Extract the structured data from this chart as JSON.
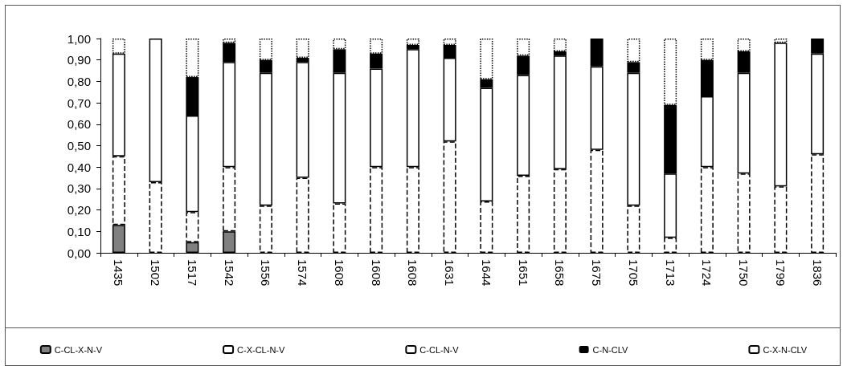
{
  "chart_data": {
    "type": "bar",
    "stacked": true,
    "categories": [
      "1435",
      "1502",
      "1517",
      "1542",
      "1556",
      "1574",
      "1608",
      "1608",
      "1608",
      "1631",
      "1644",
      "1651",
      "1658",
      "1675",
      "1705",
      "1713",
      "1724",
      "1750",
      "1799",
      "1836"
    ],
    "series": [
      {
        "name": "C-CL-X-N-V",
        "color": "#808080",
        "line_style": "solid",
        "values": [
          0.13,
          0,
          0.05,
          0.1,
          0,
          0,
          0,
          0,
          0,
          0,
          0,
          0,
          0,
          0,
          0,
          0,
          0,
          0,
          0,
          0
        ]
      },
      {
        "name": "C-X-CL-N-V",
        "color": "#ffffff",
        "line_style": "dashed",
        "values": [
          0.32,
          0.33,
          0.14,
          0.3,
          0.22,
          0.35,
          0.23,
          0.4,
          0.4,
          0.52,
          0.24,
          0.36,
          0.39,
          0.48,
          0.22,
          0.07,
          0.4,
          0.37,
          0.31,
          0.46
        ]
      },
      {
        "name": "C-CL-N-V",
        "color": "#ffffff",
        "line_style": "solid",
        "values": [
          0.48,
          0.67,
          0.45,
          0.49,
          0.62,
          0.54,
          0.61,
          0.46,
          0.55,
          0.39,
          0.53,
          0.47,
          0.53,
          0.39,
          0.62,
          0.3,
          0.33,
          0.47,
          0.67,
          0.47
        ]
      },
      {
        "name": "C-N-CLV",
        "color": "#000000",
        "line_style": "solid",
        "values": [
          0,
          0,
          0.18,
          0.09,
          0.06,
          0.02,
          0.11,
          0.07,
          0.02,
          0.06,
          0.04,
          0.09,
          0.02,
          0.13,
          0.05,
          0.32,
          0.17,
          0.1,
          0,
          0.07
        ]
      },
      {
        "name": "C-X-N-CLV",
        "color": "#ffffff",
        "line_style": "dotted",
        "values": [
          0.07,
          0,
          0.18,
          0.02,
          0.1,
          0.09,
          0.05,
          0.07,
          0.03,
          0.03,
          0.19,
          0.08,
          0.06,
          0,
          0.11,
          0.31,
          0.1,
          0.06,
          0.02,
          0
        ]
      }
    ],
    "ylim": [
      0,
      1
    ],
    "yticks": [
      {
        "value": 0,
        "label": "0,00"
      },
      {
        "value": 0.1,
        "label": "0,10"
      },
      {
        "value": 0.2,
        "label": "0,20"
      },
      {
        "value": 0.3,
        "label": "0,30"
      },
      {
        "value": 0.4,
        "label": "0,40"
      },
      {
        "value": 0.5,
        "label": "0,50"
      },
      {
        "value": 0.6,
        "label": "0,60"
      },
      {
        "value": 0.7,
        "label": "0,70"
      },
      {
        "value": 0.8,
        "label": "0,80"
      },
      {
        "value": 0.9,
        "label": "0,90"
      },
      {
        "value": 1,
        "label": "1,00"
      }
    ],
    "grid": false,
    "legend": "bottom"
  }
}
